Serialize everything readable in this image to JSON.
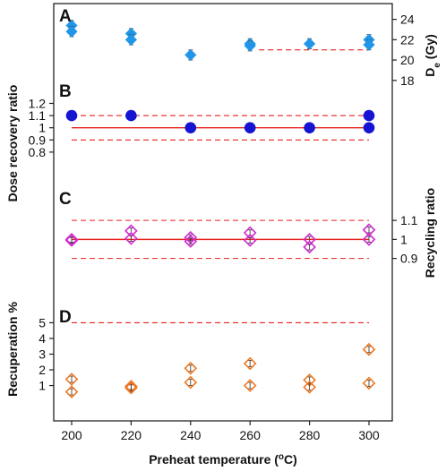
{
  "chart_data": {
    "type": "scatter",
    "xlabel_main": "Preheat temperature (",
    "xlabel_sup": "o",
    "xlabel_end": "C)",
    "x_ticks": [
      200,
      220,
      240,
      260,
      280,
      300
    ],
    "xlim": [
      190,
      310
    ],
    "panels": [
      {
        "letter": "A",
        "ylabel_right_main": "D",
        "ylabel_right_sub": "e",
        "ylabel_right_end": " (Gy)",
        "axis_side": "right",
        "yticks": [
          "24",
          "22",
          "20",
          "18"
        ],
        "ytick_values": [
          24,
          22,
          20,
          18
        ],
        "ylim": [
          17.1,
          25.2
        ],
        "marker": "filled-diamond",
        "color": "#2196e8",
        "points": [
          {
            "x": 200,
            "y": 23.4,
            "err": 0.5
          },
          {
            "x": 200,
            "y": 22.8,
            "err": 0.5
          },
          {
            "x": 220,
            "y": 22.6,
            "err": 0.5
          },
          {
            "x": 220,
            "y": 22.0,
            "err": 0.5
          },
          {
            "x": 240,
            "y": 20.5,
            "err": 0.5
          },
          {
            "x": 260,
            "y": 21.6,
            "err": 0.5
          },
          {
            "x": 260,
            "y": 21.4,
            "err": 0.5
          },
          {
            "x": 280,
            "y": 21.6,
            "err": 0.5
          },
          {
            "x": 300,
            "y": 22.0,
            "err": 0.5
          },
          {
            "x": 300,
            "y": 21.5,
            "err": 0.5
          }
        ],
        "dashed_lines": [
          {
            "y": 21.0,
            "x_from": 263,
            "x_to": 300
          }
        ]
      },
      {
        "letter": "B",
        "ylabel_left": "Dose recovery ratio",
        "axis_side": "left",
        "yticks": [
          "1.2",
          "1.1",
          "1",
          "0.9",
          "0.8"
        ],
        "ytick_values": [
          1.2,
          1.1,
          1.0,
          0.9,
          0.8
        ],
        "ylim": [
          0.755,
          1.255
        ],
        "marker": "filled-circle",
        "color": "#1414d2",
        "points": [
          {
            "x": 200,
            "y": 1.1
          },
          {
            "x": 220,
            "y": 1.1
          },
          {
            "x": 240,
            "y": 1.0
          },
          {
            "x": 260,
            "y": 1.0
          },
          {
            "x": 280,
            "y": 1.0
          },
          {
            "x": 300,
            "y": 1.0
          },
          {
            "x": 300,
            "y": 1.1
          }
        ],
        "solid_line": 1.0,
        "dashed_lines": [
          {
            "y": 1.1
          },
          {
            "y": 0.9
          }
        ]
      },
      {
        "letter": "C",
        "ylabel_right": "Recycling ratio",
        "axis_side": "right",
        "yticks": [
          "1.1",
          "1",
          "0.9"
        ],
        "ytick_values": [
          1.1,
          1.0,
          0.9
        ],
        "ylim": [
          0.79,
          1.27
        ],
        "marker": "open-diamond",
        "color": "#d22ad2",
        "points": [
          {
            "x": 200,
            "y": 1.0,
            "err": 0.015
          },
          {
            "x": 200,
            "y": 0.995,
            "err": 0.015
          },
          {
            "x": 220,
            "y": 1.045,
            "err": 0.015
          },
          {
            "x": 220,
            "y": 1.005,
            "err": 0.015
          },
          {
            "x": 240,
            "y": 1.01,
            "err": 0.015
          },
          {
            "x": 240,
            "y": 0.99,
            "err": 0.015
          },
          {
            "x": 260,
            "y": 1.035,
            "err": 0.015
          },
          {
            "x": 260,
            "y": 0.995,
            "err": 0.015
          },
          {
            "x": 280,
            "y": 1.0,
            "err": 0.015
          },
          {
            "x": 280,
            "y": 0.96,
            "err": 0.015
          },
          {
            "x": 300,
            "y": 1.05,
            "err": 0.015
          },
          {
            "x": 300,
            "y": 1.0,
            "err": 0.015
          }
        ],
        "solid_line": 1.0,
        "dashed_lines": [
          {
            "y": 1.1
          },
          {
            "y": 0.9
          }
        ]
      },
      {
        "letter": "D",
        "ylabel_left": "Recuperation %",
        "axis_side": "left",
        "yticks": [
          "5",
          "4",
          "3",
          "2",
          "1"
        ],
        "ytick_values": [
          5,
          4,
          3,
          2,
          1
        ],
        "ylim": [
          -0.45,
          6.45
        ],
        "marker": "open-diamond",
        "color": "#f07820",
        "points": [
          {
            "x": 200,
            "y": 1.4,
            "err": 0.2
          },
          {
            "x": 200,
            "y": 0.6,
            "err": 0.2
          },
          {
            "x": 220,
            "y": 0.95,
            "err": 0.2
          },
          {
            "x": 220,
            "y": 0.85,
            "err": 0.2
          },
          {
            "x": 240,
            "y": 2.1,
            "err": 0.2
          },
          {
            "x": 240,
            "y": 1.2,
            "err": 0.2
          },
          {
            "x": 260,
            "y": 2.4,
            "err": 0.2
          },
          {
            "x": 260,
            "y": 1.0,
            "err": 0.2
          },
          {
            "x": 280,
            "y": 1.35,
            "err": 0.2
          },
          {
            "x": 280,
            "y": 0.9,
            "err": 0.2
          },
          {
            "x": 300,
            "y": 3.3,
            "err": 0.2
          },
          {
            "x": 300,
            "y": 1.15,
            "err": 0.2
          }
        ],
        "dashed_lines": [
          {
            "y": 5.0
          }
        ]
      }
    ]
  }
}
